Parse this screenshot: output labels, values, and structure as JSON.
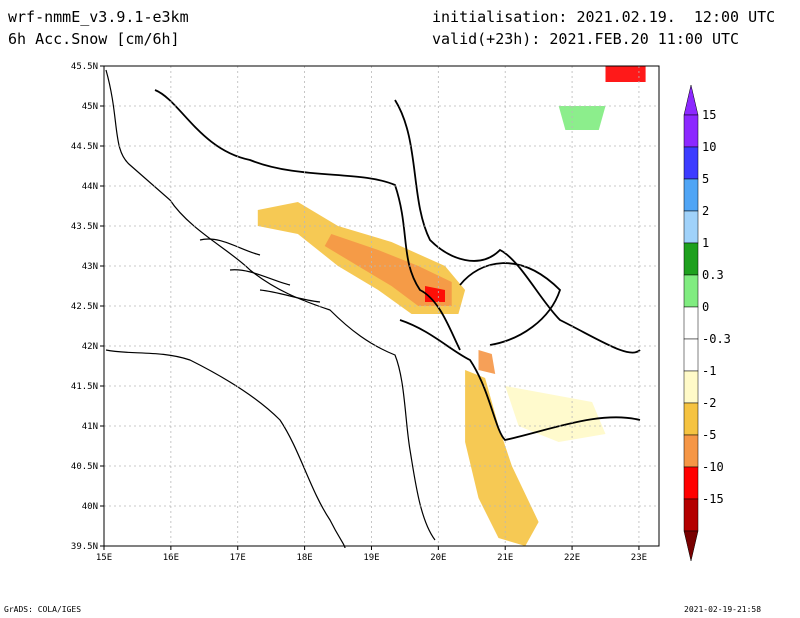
{
  "header": {
    "model": "wrf-nmmE_v3.9.1-e3km",
    "field": "6h Acc.Snow [cm/6h]",
    "init": "initialisation: 2021.02.19.  12:00 UTC",
    "valid": "valid(+23h): 2021.FEB.20 11:00 UTC"
  },
  "footer": {
    "credit": "GrADS: COLA/IGES",
    "timestamp": "2021-02-19-21:58"
  },
  "map": {
    "lon_range": [
      15,
      23.3
    ],
    "lat_range": [
      39.5,
      45.5
    ],
    "lon_ticks": [
      {
        "v": 15,
        "label": "15E"
      },
      {
        "v": 16,
        "label": "16E"
      },
      {
        "v": 17,
        "label": "17E"
      },
      {
        "v": 18,
        "label": "18E"
      },
      {
        "v": 19,
        "label": "19E"
      },
      {
        "v": 20,
        "label": "20E"
      },
      {
        "v": 21,
        "label": "21E"
      },
      {
        "v": 22,
        "label": "22E"
      },
      {
        "v": 23,
        "label": "23E"
      }
    ],
    "lat_ticks": [
      {
        "v": 39.5,
        "label": "39.5N"
      },
      {
        "v": 40,
        "label": "40N"
      },
      {
        "v": 40.5,
        "label": "40.5N"
      },
      {
        "v": 41,
        "label": "41N"
      },
      {
        "v": 41.5,
        "label": "41.5N"
      },
      {
        "v": 42,
        "label": "42N"
      },
      {
        "v": 42.5,
        "label": "42.5N"
      },
      {
        "v": 43,
        "label": "43N"
      },
      {
        "v": 43.5,
        "label": "43.5N"
      },
      {
        "v": 44,
        "label": "44N"
      },
      {
        "v": 44.5,
        "label": "44.5N"
      },
      {
        "v": 45,
        "label": "45N"
      },
      {
        "v": 45.5,
        "label": "45.5N"
      }
    ]
  },
  "legend": {
    "bins": [
      {
        "color": "#ffffff",
        "label": "0"
      },
      {
        "color": "#80ec80",
        "label": "0.3"
      },
      {
        "color": "#1ea01e",
        "label": "1"
      },
      {
        "color": "#a0d2fa",
        "label": "2"
      },
      {
        "color": "#50a5f5",
        "label": "5"
      },
      {
        "color": "#3c3cff",
        "label": "10"
      },
      {
        "color": "#8c28ff",
        "label": "15"
      }
    ],
    "neg_bins": [
      {
        "color": "#ffffff",
        "label": "-0.3"
      },
      {
        "color": "#fffac8",
        "label": "-1"
      },
      {
        "color": "#f5c341",
        "label": "-2"
      },
      {
        "color": "#f59646",
        "label": "-5"
      },
      {
        "color": "#ff0000",
        "label": "-10"
      },
      {
        "color": "#b40000",
        "label": "-15"
      },
      {
        "color": "#780000",
        "label": ""
      }
    ]
  },
  "snow_regions": [
    {
      "name": "dinaric-main",
      "level": "-2",
      "pts": [
        [
          17.3,
          43.7
        ],
        [
          17.9,
          43.8
        ],
        [
          18.5,
          43.5
        ],
        [
          19.3,
          43.3
        ],
        [
          20.1,
          43.0
        ],
        [
          20.4,
          42.7
        ],
        [
          20.3,
          42.4
        ],
        [
          19.6,
          42.4
        ],
        [
          19.1,
          42.7
        ],
        [
          18.5,
          43.0
        ],
        [
          17.9,
          43.4
        ],
        [
          17.3,
          43.5
        ]
      ]
    },
    {
      "name": "dinaric-core",
      "level": "-5",
      "pts": [
        [
          18.4,
          43.4
        ],
        [
          19.1,
          43.2
        ],
        [
          19.7,
          43.0
        ],
        [
          20.2,
          42.8
        ],
        [
          20.2,
          42.5
        ],
        [
          19.7,
          42.5
        ],
        [
          19.3,
          42.75
        ],
        [
          18.7,
          43.05
        ],
        [
          18.3,
          43.25
        ]
      ]
    },
    {
      "name": "dinaric-peak",
      "level": "-10",
      "pts": [
        [
          19.8,
          42.75
        ],
        [
          20.1,
          42.7
        ],
        [
          20.1,
          42.55
        ],
        [
          19.8,
          42.55
        ]
      ]
    },
    {
      "name": "pindus",
      "level": "-2",
      "pts": [
        [
          20.4,
          41.7
        ],
        [
          20.7,
          41.6
        ],
        [
          20.9,
          41.0
        ],
        [
          21.1,
          40.5
        ],
        [
          21.5,
          39.8
        ],
        [
          21.3,
          39.5
        ],
        [
          20.9,
          39.6
        ],
        [
          20.6,
          40.1
        ],
        [
          20.4,
          40.8
        ]
      ]
    },
    {
      "name": "macedonia",
      "level": "-1",
      "pts": [
        [
          21.0,
          41.5
        ],
        [
          22.3,
          41.3
        ],
        [
          22.5,
          40.9
        ],
        [
          21.8,
          40.8
        ],
        [
          21.2,
          41.0
        ]
      ]
    },
    {
      "name": "korab",
      "level": "-5",
      "pts": [
        [
          20.6,
          41.95
        ],
        [
          20.8,
          41.9
        ],
        [
          20.85,
          41.65
        ],
        [
          20.6,
          41.7
        ]
      ]
    },
    {
      "name": "romania-peak",
      "level": "-10",
      "pts": [
        [
          22.5,
          45.5
        ],
        [
          23.1,
          45.5
        ],
        [
          23.1,
          45.3
        ],
        [
          22.5,
          45.3
        ]
      ]
    },
    {
      "name": "romania-rain",
      "level": "0.3",
      "pts": [
        [
          21.8,
          45.0
        ],
        [
          22.5,
          45.0
        ],
        [
          22.4,
          44.7
        ],
        [
          21.9,
          44.7
        ]
      ]
    }
  ]
}
